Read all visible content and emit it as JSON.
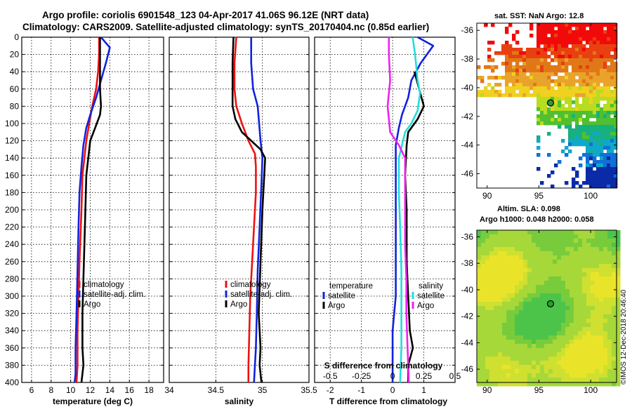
{
  "title": {
    "line1": "Argo profile: coriolis 6901548_123 04-Apr-2017 41.06S 96.12E (NRT data)",
    "line2": "Climatology: CARS2009. Satellite-adjusted climatology: synTS_20170404.nc (0.85d earlier)"
  },
  "stamp": "©IMOS 12-Dec-2018 20:46:40",
  "colors": {
    "climatology": "#ee1111",
    "satellite": "#1122dd",
    "argo": "#000000",
    "cyan": "#22dddd",
    "magenta": "#ee22ee"
  },
  "chart_data": [
    {
      "type": "line",
      "name": "temperature-profile",
      "xlabel": "temperature (deg C)",
      "ylabel": "",
      "xlim": [
        5,
        19.5
      ],
      "ylim": [
        400,
        0
      ],
      "xticks": [
        "6",
        "8",
        "10",
        "12",
        "14",
        "16",
        "18"
      ],
      "xtick_values": [
        6,
        8,
        10,
        12,
        14,
        16,
        18
      ],
      "yticks": [
        "0",
        "20",
        "40",
        "60",
        "80",
        "100",
        "120",
        "140",
        "160",
        "180",
        "200",
        "220",
        "240",
        "260",
        "280",
        "300",
        "320",
        "340",
        "360",
        "380",
        "400"
      ],
      "ytick_values": [
        0,
        20,
        40,
        60,
        80,
        100,
        120,
        140,
        160,
        180,
        200,
        220,
        240,
        260,
        280,
        300,
        320,
        340,
        360,
        380,
        400
      ],
      "legend": [
        "climatology",
        "satellite-adj. clim.",
        "Argo"
      ],
      "series": [
        {
          "name": "climatology",
          "color": "#ee1111",
          "points": [
            [
              12.9,
              0
            ],
            [
              12.9,
              20
            ],
            [
              12.8,
              40
            ],
            [
              12.6,
              60
            ],
            [
              12.2,
              80
            ],
            [
              11.9,
              100
            ],
            [
              11.6,
              120
            ],
            [
              11.4,
              140
            ],
            [
              11.2,
              160
            ],
            [
              11.1,
              200
            ],
            [
              10.9,
              260
            ],
            [
              10.8,
              300
            ],
            [
              10.7,
              340
            ],
            [
              10.7,
              380
            ],
            [
              10.6,
              400
            ]
          ]
        },
        {
          "name": "satellite-adj. clim.",
          "color": "#1122dd",
          "points": [
            [
              13.1,
              0
            ],
            [
              14.0,
              12
            ],
            [
              13.6,
              30
            ],
            [
              13.1,
              50
            ],
            [
              12.6,
              70
            ],
            [
              12.0,
              90
            ],
            [
              11.6,
              105
            ],
            [
              11.3,
              125
            ],
            [
              11.1,
              150
            ],
            [
              10.9,
              180
            ],
            [
              10.8,
              220
            ],
            [
              10.7,
              270
            ],
            [
              10.6,
              320
            ],
            [
              10.5,
              360
            ],
            [
              10.5,
              390
            ],
            [
              10.4,
              400
            ]
          ]
        },
        {
          "name": "Argo",
          "color": "#000000",
          "points": [
            [
              13.0,
              0
            ],
            [
              13.0,
              30
            ],
            [
              13.0,
              60
            ],
            [
              13.1,
              80
            ],
            [
              13.0,
              90
            ],
            [
              12.5,
              105
            ],
            [
              12.0,
              120
            ],
            [
              11.8,
              140
            ],
            [
              11.6,
              160
            ],
            [
              11.5,
              200
            ],
            [
              11.4,
              240
            ],
            [
              11.3,
              280
            ],
            [
              11.2,
              320
            ],
            [
              11.2,
              360
            ],
            [
              11.3,
              380
            ],
            [
              11.1,
              400
            ]
          ]
        }
      ]
    },
    {
      "type": "line",
      "name": "salinity-profile",
      "xlabel": "salinity",
      "xlim": [
        34,
        35.5
      ],
      "ylim": [
        400,
        0
      ],
      "xticks": [
        "34",
        "34.5",
        "35",
        "35.5"
      ],
      "xtick_values": [
        34,
        34.5,
        35,
        35.5
      ],
      "legend": [
        "climatology",
        "satellite-adj. clim.",
        "Argo"
      ],
      "series": [
        {
          "name": "climatology",
          "color": "#ee1111",
          "points": [
            [
              34.72,
              0
            ],
            [
              34.7,
              30
            ],
            [
              34.7,
              60
            ],
            [
              34.72,
              80
            ],
            [
              34.78,
              100
            ],
            [
              34.85,
              120
            ],
            [
              34.92,
              135
            ],
            [
              34.93,
              150
            ],
            [
              34.93,
              180
            ],
            [
              34.91,
              220
            ],
            [
              34.89,
              260
            ],
            [
              34.87,
              300
            ],
            [
              34.86,
              340
            ],
            [
              34.85,
              380
            ],
            [
              34.85,
              400
            ]
          ]
        },
        {
          "name": "satellite-adj. clim.",
          "color": "#1122dd",
          "points": [
            [
              34.88,
              0
            ],
            [
              34.88,
              30
            ],
            [
              34.9,
              60
            ],
            [
              34.95,
              80
            ],
            [
              34.98,
              120
            ],
            [
              35.0,
              140
            ],
            [
              34.99,
              170
            ],
            [
              34.97,
              220
            ],
            [
              34.95,
              270
            ],
            [
              34.94,
              320
            ],
            [
              34.93,
              360
            ],
            [
              34.91,
              400
            ]
          ]
        },
        {
          "name": "Argo",
          "color": "#000000",
          "points": [
            [
              34.69,
              0
            ],
            [
              34.68,
              30
            ],
            [
              34.68,
              60
            ],
            [
              34.68,
              80
            ],
            [
              34.71,
              95
            ],
            [
              34.78,
              110
            ],
            [
              34.88,
              120
            ],
            [
              34.98,
              130
            ],
            [
              35.03,
              140
            ],
            [
              35.02,
              160
            ],
            [
              35.0,
              200
            ],
            [
              34.98,
              260
            ],
            [
              34.96,
              320
            ],
            [
              34.98,
              360
            ],
            [
              34.97,
              380
            ],
            [
              34.99,
              400
            ]
          ]
        }
      ]
    },
    {
      "type": "line",
      "name": "difference-profile",
      "xlabel": "T difference from climatology",
      "xlabel2": "S difference from climatology",
      "xlim": [
        -2.5,
        2
      ],
      "ylim": [
        400,
        0
      ],
      "xticks": [
        "-2",
        "-1",
        "0",
        "1"
      ],
      "xtick_values": [
        -2,
        -1,
        0,
        1
      ],
      "xticks2": [
        "-0.5",
        "-0.25",
        "0",
        "0.25",
        "0.5"
      ],
      "xtick2_values": [
        -0.5,
        -0.25,
        0,
        0.25,
        0.5
      ],
      "s_scale": 4,
      "legend_left": {
        "title": "temperature",
        "items": [
          "satellite",
          "Argo"
        ]
      },
      "legend_right": {
        "title": "salinity",
        "items": [
          "satellite",
          "Argo"
        ]
      },
      "series": [
        {
          "name": "temperature satellite",
          "color": "#1122dd",
          "points": [
            [
              0.8,
              0
            ],
            [
              1.3,
              10
            ],
            [
              0.9,
              30
            ],
            [
              0.6,
              50
            ],
            [
              0.5,
              70
            ],
            [
              0.3,
              90
            ],
            [
              0.2,
              105
            ],
            [
              0.1,
              125
            ],
            [
              0.1,
              160
            ],
            [
              0.1,
              200
            ],
            [
              0.1,
              250
            ],
            [
              0.1,
              300
            ],
            [
              0.0,
              340
            ],
            [
              0.0,
              380
            ],
            [
              0.0,
              400
            ]
          ]
        },
        {
          "name": "temperature Argo",
          "color": "#000000",
          "points": [
            [
              0.7,
              40
            ],
            [
              0.85,
              60
            ],
            [
              1.0,
              80
            ],
            [
              0.8,
              95
            ],
            [
              0.5,
              110
            ],
            [
              0.45,
              125
            ],
            [
              0.4,
              160
            ],
            [
              0.45,
              200
            ],
            [
              0.45,
              260
            ],
            [
              0.5,
              300
            ],
            [
              0.55,
              340
            ],
            [
              0.65,
              360
            ],
            [
              0.5,
              380
            ],
            [
              0.5,
              400
            ]
          ]
        },
        {
          "name": "salinity satellite",
          "color": "#22dddd",
          "points": [
            [
              0.16,
              0
            ],
            [
              0.18,
              20
            ],
            [
              0.2,
              50
            ],
            [
              0.22,
              65
            ],
            [
              0.2,
              85
            ],
            [
              0.15,
              100
            ],
            [
              0.1,
              110
            ],
            [
              0.05,
              140
            ],
            [
              0.05,
              180
            ],
            [
              0.06,
              220
            ],
            [
              0.07,
              270
            ],
            [
              0.07,
              320
            ],
            [
              0.07,
              360
            ],
            [
              0.06,
              400
            ]
          ]
        },
        {
          "name": "salinity Argo",
          "color": "#ee22ee",
          "points": [
            [
              -0.03,
              0
            ],
            [
              -0.03,
              20
            ],
            [
              -0.02,
              50
            ],
            [
              -0.04,
              80
            ],
            [
              -0.03,
              95
            ],
            [
              -0.02,
              110
            ],
            [
              0.05,
              125
            ],
            [
              0.1,
              140
            ],
            [
              0.1,
              180
            ],
            [
              0.1,
              240
            ],
            [
              0.11,
              280
            ],
            [
              0.11,
              320
            ],
            [
              0.12,
              360
            ],
            [
              0.13,
              400
            ]
          ]
        }
      ]
    }
  ],
  "map_sst": {
    "title": "sat. SST: NaN Argo: 12.8",
    "lat_labels": [
      "-36",
      "-38",
      "-40",
      "-42",
      "-44",
      "-46"
    ],
    "lat_values": [
      -36,
      -38,
      -40,
      -42,
      -44,
      -46
    ],
    "lon_labels": [
      "90",
      "95",
      "100"
    ],
    "lon_values": [
      90,
      95,
      100
    ],
    "lon_range": [
      89,
      102.5
    ],
    "lat_range": [
      -35.5,
      -47
    ],
    "argo_lon": 96.12,
    "argo_lat": -41.06
  },
  "map_sla": {
    "title1": "Altim. SLA: 0.098",
    "title2": "Argo h1000: 0.048 h2000: 0.058",
    "lat_labels": [
      "-36",
      "-38",
      "-40",
      "-42",
      "-44",
      "-46"
    ],
    "lat_values": [
      -36,
      -38,
      -40,
      -42,
      -44,
      -46
    ],
    "lon_labels": [
      "90",
      "95",
      "100"
    ],
    "lon_values": [
      90,
      95,
      100
    ],
    "lon_range": [
      89,
      102.5
    ],
    "lat_range": [
      -35.5,
      -47
    ],
    "argo_lon": 96.12,
    "argo_lat": -41.06
  }
}
